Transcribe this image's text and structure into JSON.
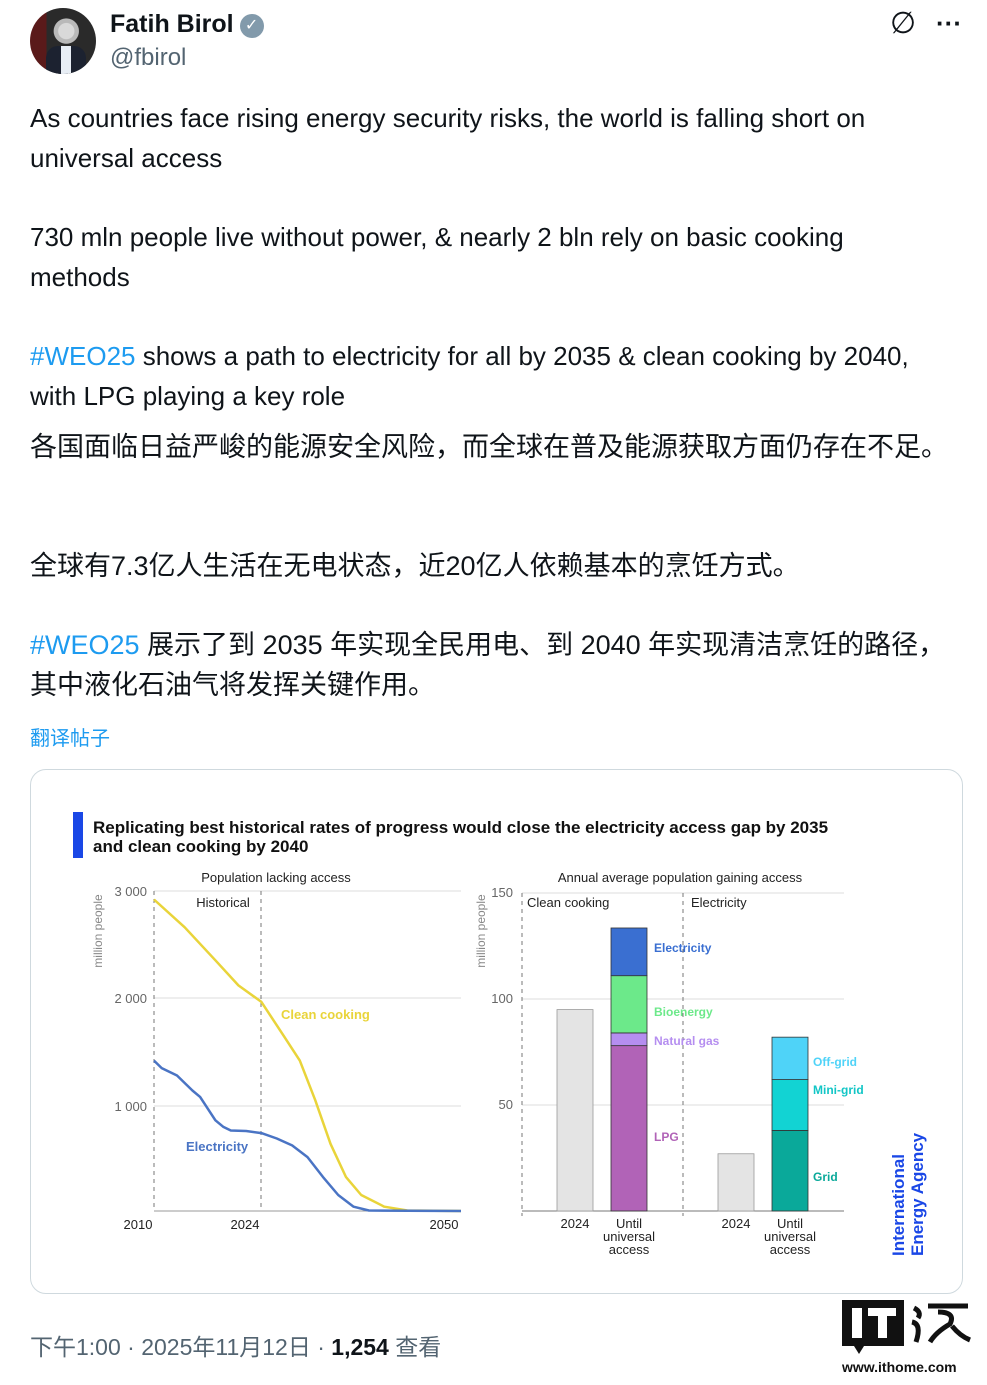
{
  "author": {
    "name": "Fatih Birol",
    "handle": "@fbirol",
    "verified_icon": "verified-badge-icon"
  },
  "header_icons": [
    "grok-icon",
    "more-icon"
  ],
  "header_more_label": "···",
  "tweet": {
    "p1": "As countries face rising energy security risks, the world is falling short on universal access",
    "p2": "730 mln people live without power, & nearly 2 bln rely on basic cooking methods",
    "p3_tag": "#WEO25",
    "p3_rest": " shows a path to electricity for all by 2035 & clean cooking by 2040, with LPG playing a key role",
    "zh1": "各国面临日益严峻的能源安全风险，而全球在普及能源获取方面仍存在不足。",
    "zh2": "全球有7.3亿人生活在无电状态，近20亿人依赖基本的烹饪方式。",
    "zh3_tag": "#WEO25",
    "zh3_rest": " 展示了到 2035 年实现全民用电、到 2040 年实现清洁烹饪的路径，其中液化石油气将发挥关键作用。",
    "translate_label": "翻译帖子"
  },
  "footer": {
    "time": "下午1:00 · 2025年11月12日 · ",
    "views": "1,254",
    "views_label": " 查看"
  },
  "watermark": {
    "logo_text": "IT之家",
    "url": "www.ithome.com"
  },
  "colors": {
    "accent": "#1d9bf0",
    "iea_blue": "#1a47e6",
    "cooking_line": "#e9d43a",
    "electricity_line": "#4a74c4"
  },
  "chart_title": "Replicating best historical rates of progress would close the electricity access gap by 2035 and clean cooking by 2040",
  "iea_logo": "International Energy Agency",
  "chart_data": [
    {
      "type": "line",
      "title": "Population lacking access",
      "ylabel": "million people",
      "ylim": [
        0,
        3000
      ],
      "yticks": [
        "3 000",
        "2 000",
        "1 000"
      ],
      "xlim": [
        2010,
        2050
      ],
      "xticks": [
        "2010",
        "2024",
        "2050"
      ],
      "annotation": "Historical",
      "grid": true,
      "series": [
        {
          "name": "Clean cooking",
          "color": "#e9d43a",
          "x": [
            2010,
            2014,
            2018,
            2021,
            2024,
            2027,
            2029,
            2031,
            2033,
            2035,
            2037,
            2040,
            2043,
            2050
          ],
          "y": [
            2920,
            2660,
            2350,
            2115,
            1960,
            1630,
            1410,
            1040,
            630,
            320,
            150,
            40,
            5,
            0
          ]
        },
        {
          "name": "Electricity",
          "color": "#4a74c4",
          "x": [
            2010,
            2011,
            2013,
            2015,
            2016,
            2018,
            2019,
            2020,
            2022,
            2024,
            2026,
            2028,
            2030,
            2032,
            2034,
            2036,
            2038,
            2050
          ],
          "y": [
            1410,
            1340,
            1270,
            1130,
            1070,
            850,
            790,
            755,
            750,
            730,
            680,
            615,
            505,
            320,
            150,
            40,
            5,
            0
          ]
        }
      ]
    },
    {
      "type": "bar",
      "stacked": true,
      "title": "Annual average population gaining access",
      "ylabel": "million people",
      "ylim": [
        0,
        150
      ],
      "yticks": [
        "150",
        "100",
        "50"
      ],
      "grid": true,
      "groups": [
        {
          "name": "Clean cooking",
          "bars": [
            {
              "label": "2024",
              "segments": [
                {
                  "name": "",
                  "value": 95,
                  "color": "#e4e4e4"
                }
              ]
            },
            {
              "label": "Until universal access",
              "segments": [
                {
                  "name": "LPG",
                  "value": 78,
                  "color": "#b163b7"
                },
                {
                  "name": "Natural gas",
                  "value": 6,
                  "color": "#b58ef0"
                },
                {
                  "name": "Bioenergy",
                  "value": 27,
                  "color": "#6ce98a"
                },
                {
                  "name": "Electricity",
                  "value": 22.5,
                  "color": "#3a6fd1"
                }
              ]
            }
          ]
        },
        {
          "name": "Electricity",
          "bars": [
            {
              "label": "2024",
              "segments": [
                {
                  "name": "",
                  "value": 27,
                  "color": "#e4e4e4"
                }
              ]
            },
            {
              "label": "Until universal access",
              "segments": [
                {
                  "name": "Grid",
                  "value": 38,
                  "color": "#0aa99a"
                },
                {
                  "name": "Mini-grid",
                  "value": 24,
                  "color": "#12d3d3"
                },
                {
                  "name": "Off-grid",
                  "value": 20,
                  "color": "#4fd3f8"
                }
              ]
            }
          ]
        }
      ]
    }
  ]
}
